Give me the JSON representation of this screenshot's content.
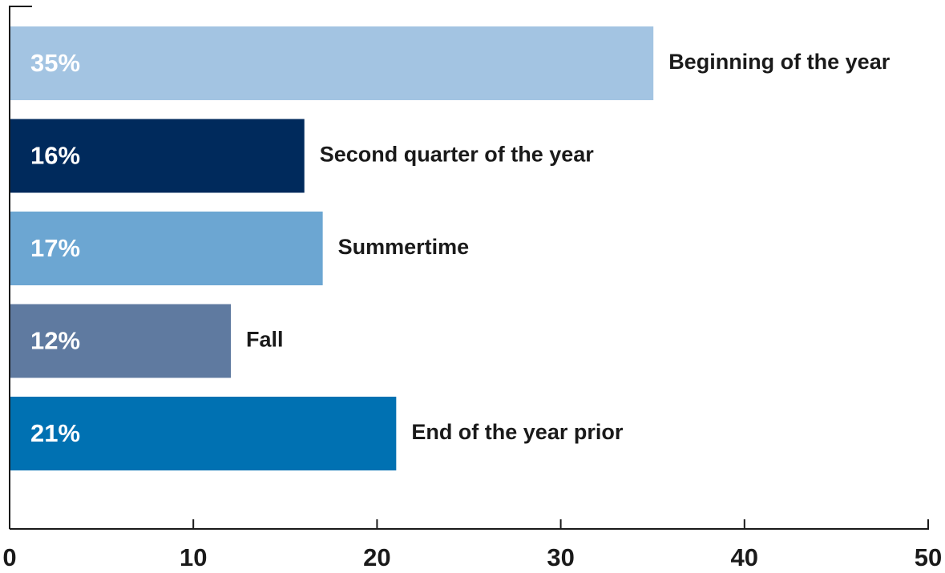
{
  "chart_data": {
    "type": "bar",
    "orientation": "horizontal",
    "categories": [
      "Beginning of the year",
      "Second quarter of the year",
      "Summertime",
      "Fall",
      "End of the year prior"
    ],
    "values": [
      35,
      16,
      17,
      12,
      21
    ],
    "value_labels": [
      "35%",
      "16%",
      "17%",
      "12%",
      "21%"
    ],
    "colors": [
      "#a3c4e2",
      "#002a5c",
      "#6ca6d2",
      "#5f7aa0",
      "#0071b2"
    ],
    "xlim": [
      0,
      50
    ],
    "xticks": [
      0,
      10,
      20,
      30,
      40,
      50
    ],
    "grid": false
  }
}
